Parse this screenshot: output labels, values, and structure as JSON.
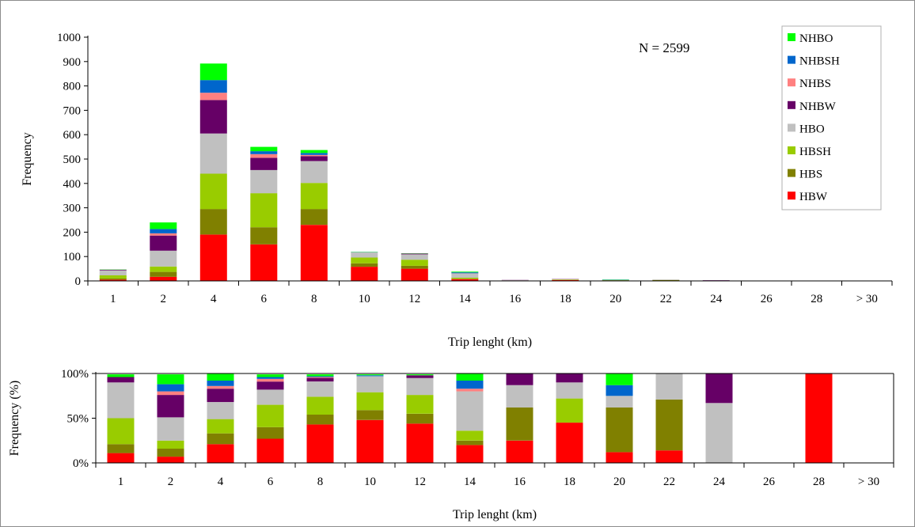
{
  "colors": {
    "HBW": "#ff0000",
    "HBS": "#808000",
    "HBSH": "#99cc00",
    "HBO": "#c0c0c0",
    "NHBW": "#660066",
    "NHBS": "#ff8080",
    "NHBSH": "#0066cc",
    "NHBO": "#00ff00"
  },
  "chart_data": [
    {
      "type": "bar",
      "stacked": true,
      "title": "",
      "annotation": "N = 2599",
      "xlabel": "Trip lenght (km)",
      "ylabel": "Frequency",
      "ylim": [
        0,
        1000
      ],
      "yticks": [
        "0",
        "100",
        "200",
        "300",
        "400",
        "500",
        "600",
        "700",
        "800",
        "900",
        "1000"
      ],
      "grid": false,
      "legend_position": "top-right",
      "legend_order": [
        "NHBO",
        "NHBSH",
        "NHBS",
        "NHBW",
        "HBO",
        "HBSH",
        "HBS",
        "HBW"
      ],
      "categories": [
        "1",
        "2",
        "4",
        "6",
        "8",
        "10",
        "12",
        "14",
        "16",
        "18",
        "20",
        "22",
        "24",
        "26",
        "28",
        "> 30"
      ],
      "series": [
        {
          "name": "HBW",
          "values": [
            5,
            17,
            190,
            150,
            230,
            58,
            50,
            7,
            1,
            4,
            1,
            1,
            0,
            0,
            1,
            0
          ]
        },
        {
          "name": "HBS",
          "values": [
            5,
            20,
            105,
            70,
            65,
            14,
            12,
            2,
            1,
            0,
            2,
            3,
            0,
            0,
            0,
            0
          ]
        },
        {
          "name": "HBSH",
          "values": [
            13,
            22,
            145,
            140,
            107,
            24,
            25,
            4,
            0,
            2,
            0,
            0,
            0,
            0,
            0,
            0
          ]
        },
        {
          "name": "HBO",
          "values": [
            20,
            65,
            165,
            95,
            90,
            22,
            22,
            17,
            1,
            1,
            1,
            2,
            2,
            0,
            0,
            0
          ]
        },
        {
          "name": "NHBW",
          "values": [
            3,
            62,
            137,
            50,
            20,
            0,
            3,
            0,
            1,
            1,
            0,
            0,
            1,
            0,
            0,
            0
          ]
        },
        {
          "name": "NHBS",
          "values": [
            0,
            9,
            30,
            15,
            5,
            0,
            0,
            1,
            0,
            0,
            0,
            0,
            0,
            0,
            0,
            0
          ]
        },
        {
          "name": "NHBSH",
          "values": [
            0,
            18,
            52,
            12,
            8,
            1,
            0,
            4,
            0,
            0,
            1,
            0,
            0,
            0,
            0,
            0
          ]
        },
        {
          "name": "NHBO",
          "values": [
            1,
            27,
            68,
            18,
            12,
            1,
            1,
            3,
            0,
            0,
            1,
            0,
            0,
            0,
            0,
            0
          ]
        }
      ]
    },
    {
      "type": "bar",
      "stacked": true,
      "normalized": true,
      "title": "",
      "xlabel": "Trip lenght (km)",
      "ylabel": "Frequency (%)",
      "ylim": [
        0,
        100
      ],
      "yticks": [
        "0%",
        "50%",
        "100%"
      ],
      "grid": false,
      "categories": [
        "1",
        "2",
        "4",
        "6",
        "8",
        "10",
        "12",
        "14",
        "16",
        "18",
        "20",
        "22",
        "24",
        "26",
        "28",
        "> 30"
      ],
      "series": [
        {
          "name": "HBW",
          "values": [
            11,
            7,
            21,
            27,
            43,
            48,
            44,
            20,
            25,
            45,
            12,
            14,
            0,
            0,
            100,
            0
          ]
        },
        {
          "name": "HBS",
          "values": [
            10,
            9,
            12,
            13,
            11,
            11,
            11,
            5,
            37,
            0,
            50,
            57,
            0,
            0,
            0,
            0
          ]
        },
        {
          "name": "HBSH",
          "values": [
            29,
            9,
            16,
            25,
            20,
            20,
            21,
            11,
            0,
            27,
            0,
            0,
            0,
            0,
            0,
            0
          ]
        },
        {
          "name": "HBO",
          "values": [
            40,
            26,
            19,
            17,
            17,
            18,
            19,
            44,
            25,
            18,
            13,
            29,
            67,
            0,
            0,
            0
          ]
        },
        {
          "name": "NHBW",
          "values": [
            6,
            25,
            15,
            9,
            4,
            0,
            3,
            0,
            13,
            10,
            0,
            0,
            33,
            0,
            0,
            0
          ]
        },
        {
          "name": "NHBS",
          "values": [
            0,
            4,
            3,
            3,
            1,
            0,
            0,
            3,
            0,
            0,
            0,
            0,
            0,
            0,
            0,
            0
          ]
        },
        {
          "name": "NHBSH",
          "values": [
            0,
            8,
            6,
            2,
            1,
            1,
            0,
            9,
            0,
            0,
            12,
            0,
            0,
            0,
            0,
            0
          ]
        },
        {
          "name": "NHBO",
          "values": [
            3,
            11,
            8,
            3,
            2,
            1,
            1,
            8,
            0,
            0,
            13,
            0,
            0,
            0,
            0,
            0
          ]
        }
      ]
    }
  ]
}
